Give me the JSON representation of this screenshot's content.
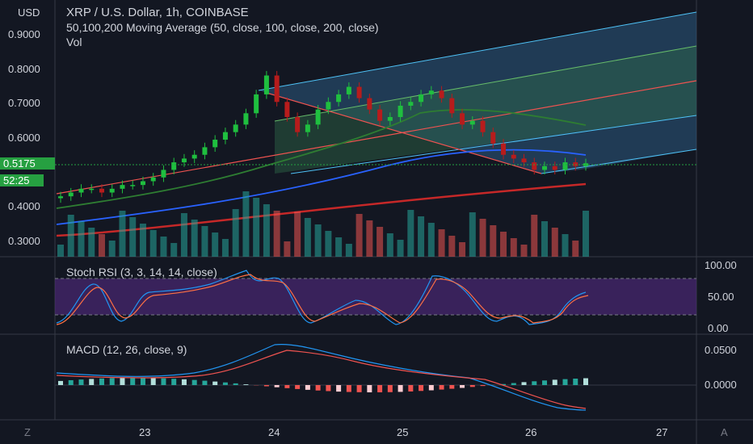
{
  "top_left": {
    "currency": "USD"
  },
  "legend": {
    "title": "XRP / U.S. Dollar, 1h, COINBASE",
    "ma_label": "50,100,200 Moving Average (50, close, 100, close, 200, close)",
    "vol_label": "Vol"
  },
  "price_axis": {
    "ticks": [
      "0.9000",
      "0.8000",
      "0.7000",
      "0.6000",
      "0.4000",
      "0.3000"
    ],
    "current_price": "0.5175",
    "countdown": "52:25"
  },
  "stoch": {
    "label": "Stoch RSI (3, 3, 14, 14, close)",
    "ticks": [
      "100.00",
      "50.00",
      "0.00"
    ]
  },
  "macd": {
    "label": "MACD (12, 26, close, 9)",
    "ticks": [
      "0.0500",
      "0.0000"
    ]
  },
  "time_axis": {
    "ticks": [
      "23",
      "24",
      "25",
      "26",
      "27"
    ],
    "left_button": "Z",
    "right_button": "A"
  },
  "colors": {
    "background": "#131722",
    "up": "#26a69a",
    "down": "#ef5350",
    "candle_up": "#1fbf3f",
    "candle_down": "#b71c1c",
    "ma50": "#2e7d32",
    "ma100": "#2962ff",
    "ma200": "#c62828",
    "stoch_band": "#4a2873",
    "pitchfork_fill": "#2b5a7f"
  },
  "chart_data": {
    "type": "candlestick",
    "symbol": "XRP / U.S. Dollar",
    "interval": "1h",
    "exchange": "COINBASE",
    "price_range": [
      0.27,
      0.95
    ],
    "x_days": [
      "23",
      "24",
      "25",
      "26",
      "27"
    ],
    "close_series": [
      0.43,
      0.44,
      0.45,
      0.45,
      0.44,
      0.45,
      0.46,
      0.46,
      0.47,
      0.48,
      0.5,
      0.52,
      0.53,
      0.54,
      0.56,
      0.58,
      0.6,
      0.62,
      0.65,
      0.7,
      0.75,
      0.68,
      0.64,
      0.6,
      0.62,
      0.66,
      0.68,
      0.7,
      0.72,
      0.69,
      0.66,
      0.63,
      0.64,
      0.67,
      0.68,
      0.7,
      0.71,
      0.69,
      0.65,
      0.62,
      0.63,
      0.6,
      0.57,
      0.54,
      0.53,
      0.52,
      0.5,
      0.51,
      0.5,
      0.52,
      0.51,
      0.5175
    ],
    "stoch_range": [
      0,
      100
    ],
    "macd_range": [
      -0.025,
      0.06
    ]
  }
}
